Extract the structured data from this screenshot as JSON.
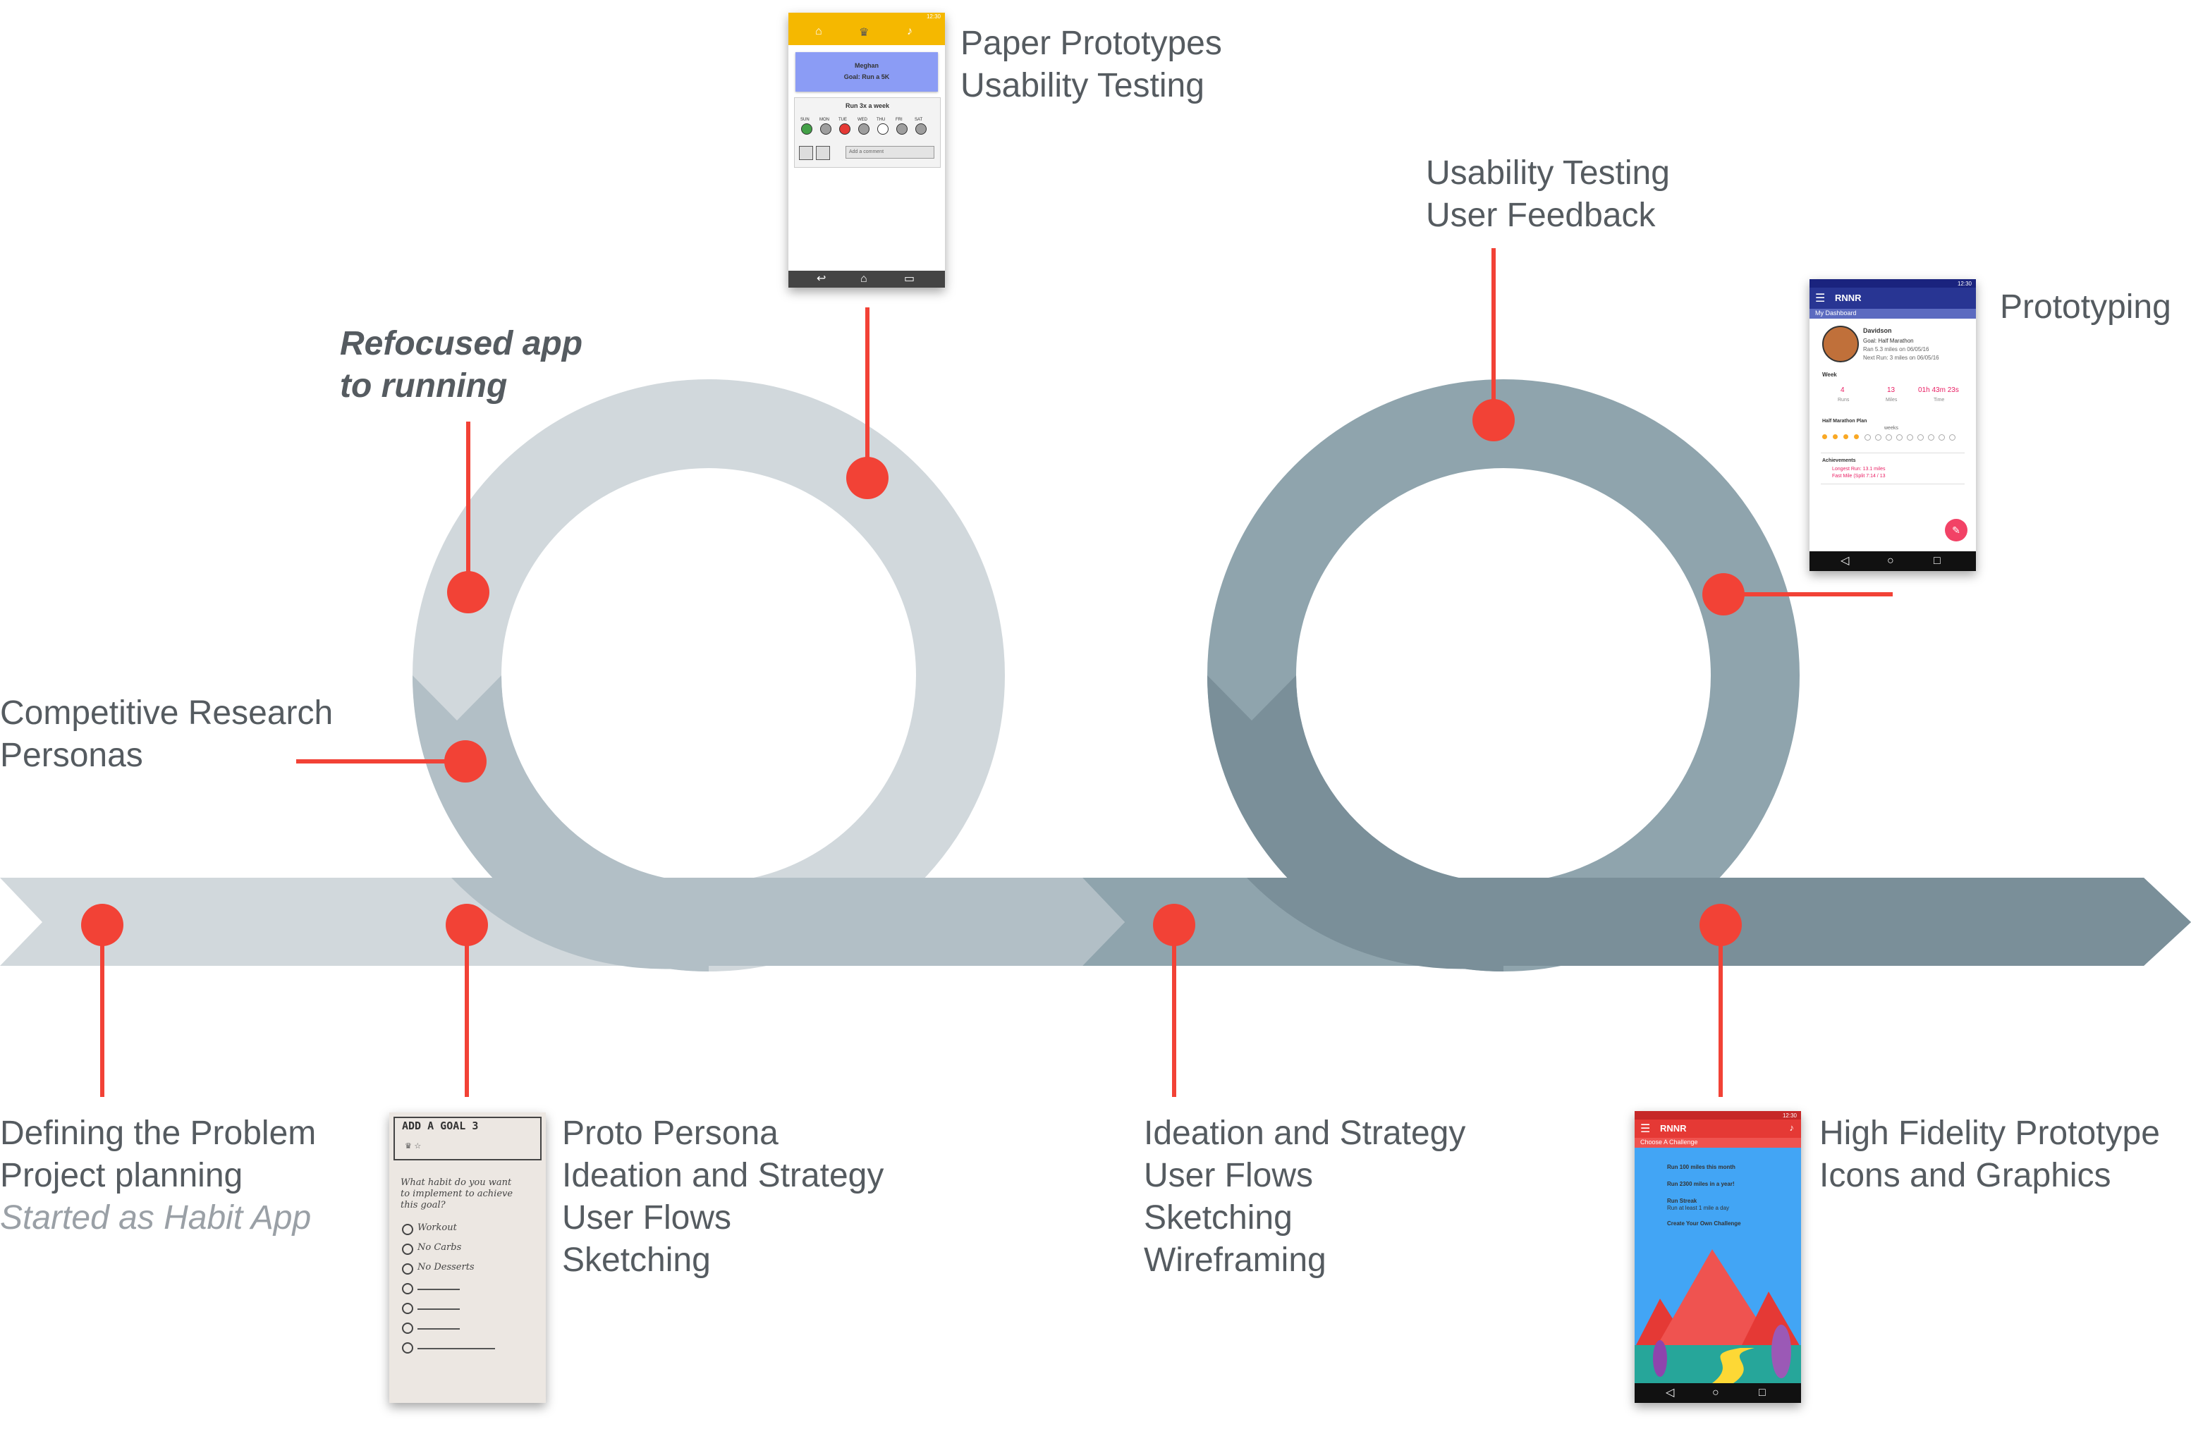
{
  "labels": {
    "refocused": [
      "Refocused app",
      "to running"
    ],
    "paper_prototypes": [
      "Paper Prototypes",
      "Usability Testing"
    ],
    "usability_feedback": [
      "Usability Testing",
      "User Feedback"
    ],
    "prototyping": "Prototyping",
    "competitive": [
      "Competitive Research",
      "Personas"
    ],
    "defining": [
      "Defining the Problem",
      "Project planning"
    ],
    "started_as": "Started as Habit App",
    "proto_persona": [
      "Proto Persona",
      "Ideation and Strategy",
      "User Flows",
      "Sketching"
    ],
    "ideation": [
      "Ideation and Strategy",
      "User Flows",
      "Sketching",
      "Wireframing"
    ],
    "high_fidelity": [
      "High Fidelity Prototype",
      "Icons and Graphics"
    ]
  },
  "paper_phone": {
    "time": "12:30",
    "name": "Meghan",
    "goal": "Goal: Run a 5K",
    "plan": "Run 3x a week",
    "days": [
      "SUN",
      "MON",
      "TUE",
      "WED",
      "THU",
      "FRI",
      "SAT"
    ],
    "comment_placeholder": "Add a comment"
  },
  "sketch": {
    "title": "ADD A GOAL 3",
    "question": [
      "What habit do you want",
      "to implement to achieve",
      "this goal?"
    ],
    "options": [
      "Workout",
      "No Carbs",
      "No Desserts"
    ]
  },
  "dashboard_phone": {
    "time": "12:30",
    "app": "RNNR",
    "subtitle": "My Dashboard",
    "user": "Davidson",
    "goal": "Goal: Half Marathon",
    "run1": "Ran 5.3 miles on 06/05/16",
    "run2": "Next Run: 3 miles on 06/05/16",
    "week_label": "Week",
    "stats": [
      {
        "value": "4",
        "label": "Runs"
      },
      {
        "value": "13",
        "label": "Miles"
      },
      {
        "value": "01h 43m 23s",
        "label": "Time"
      }
    ],
    "plan_label": "Half Marathon Plan",
    "weeks_label": "weeks",
    "achievements_label": "Achievements",
    "achievements": [
      "Longest Run: 13.1 miles",
      "Fast Mile (Split 7:14 / 13"
    ]
  },
  "challenge_phone": {
    "time": "12:30",
    "app": "RNNR",
    "subtitle": "Choose A Challenge",
    "items": [
      "Run 100 miles this month",
      "Run 2300 miles in a year!",
      "Run Streak",
      "Run at least 1 mile a day",
      "Create Your Own Challenge"
    ]
  },
  "colors": {
    "marker": "#f24236",
    "light_track": "#d1d8dc",
    "light_track_front": "#b2bfc6",
    "dark_track": "#8fa4ad",
    "dark_track_front": "#7a8f99",
    "text": "#555b60",
    "muted": "#9aa0a6"
  }
}
